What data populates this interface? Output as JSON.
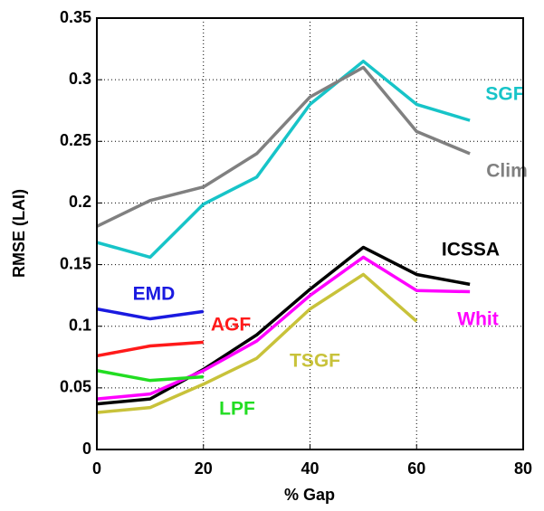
{
  "chart_data": {
    "type": "line",
    "xlabel": "% Gap",
    "ylabel": "RMSE (LAI)",
    "x": [
      0,
      10,
      20,
      30,
      40,
      50,
      60,
      70
    ],
    "series": [
      {
        "name": "SGF",
        "color": "#17c4c8",
        "values": [
          0.168,
          0.156,
          0.199,
          0.221,
          0.28,
          0.315,
          0.28,
          0.267
        ]
      },
      {
        "name": "Clim",
        "color": "#808080",
        "values": [
          0.181,
          0.202,
          0.213,
          0.24,
          0.286,
          0.31,
          0.258,
          0.24
        ]
      },
      {
        "name": "ICSSA",
        "color": "#000000",
        "values": [
          0.037,
          0.041,
          0.065,
          0.093,
          0.13,
          0.164,
          0.142,
          0.134
        ]
      },
      {
        "name": "Whit",
        "color": "#ff00ff",
        "values": [
          0.041,
          0.045,
          0.064,
          0.088,
          0.125,
          0.156,
          0.129,
          0.128
        ]
      },
      {
        "name": "TSGF",
        "color": "#c8c23a",
        "values": [
          0.03,
          0.034,
          0.053,
          0.074,
          0.114,
          0.142,
          0.104,
          null
        ]
      },
      {
        "name": "EMD",
        "color": "#1a1ae0",
        "values": [
          0.114,
          0.106,
          0.112,
          null,
          null,
          null,
          null,
          null
        ]
      },
      {
        "name": "AGF",
        "color": "#ff1a1a",
        "values": [
          0.076,
          0.084,
          0.087,
          null,
          null,
          null,
          null,
          null
        ]
      },
      {
        "name": "LPF",
        "color": "#22dd22",
        "values": [
          0.064,
          0.056,
          0.059,
          null,
          null,
          null,
          null,
          null
        ]
      }
    ],
    "xlim": [
      0,
      80
    ],
    "xticks": [
      0,
      20,
      40,
      60,
      80
    ],
    "ylim": [
      0,
      0.35
    ],
    "yticks": [
      0,
      0.05,
      0.1,
      0.15,
      0.2,
      0.25,
      0.3,
      0.35
    ],
    "grid": true
  }
}
